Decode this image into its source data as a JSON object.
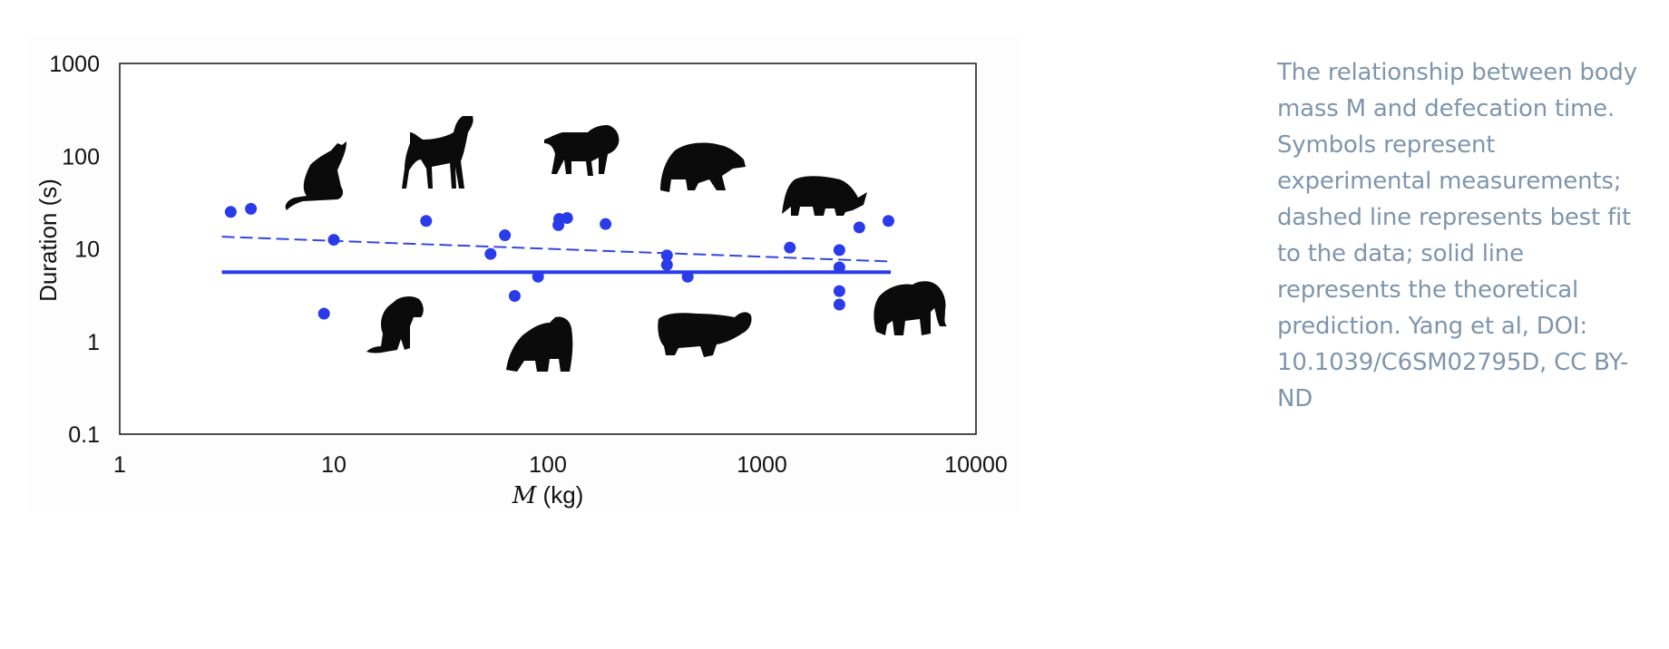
{
  "caption": "The relationship between body mass M and defecation time. Symbols represent experimental measurements; dashed line represents best fit to the data; solid line represents the theoretical prediction. Yang et al, DOI: 10.1039/C6SM02795D, CC BY-ND",
  "colors": {
    "points": "#2a3bea",
    "fit_line": "#3346e0",
    "theory_line": "#2a3bea",
    "silhouette": "#0b0b0b",
    "caption": "#7e95ac"
  },
  "icons": [
    "cat-silhouette-icon",
    "greyhound-silhouette-icon",
    "lion-silhouette-icon",
    "bear-silhouette-icon",
    "rhino-silhouette-icon",
    "dog-silhouette-icon",
    "gorilla-silhouette-icon",
    "hippo-silhouette-icon",
    "elephant-silhouette-icon"
  ],
  "chart_data": {
    "type": "scatter",
    "xlabel_italic": "M",
    "xlabel_unit": " (kg)",
    "ylabel": "Duration (s)",
    "xscale": "log",
    "yscale": "log",
    "xlim": [
      1,
      10000
    ],
    "ylim": [
      0.1,
      1000
    ],
    "x_ticks": [
      "1",
      "10",
      "100",
      "1000",
      "10000"
    ],
    "y_ticks": [
      "1000",
      "100",
      "10",
      "1",
      "0.1"
    ],
    "x_tick_values": [
      1,
      10,
      100,
      1000,
      10000
    ],
    "y_tick_values": [
      1000,
      100,
      10,
      1,
      0.1
    ],
    "points": [
      {
        "x": 3.3,
        "y": 25
      },
      {
        "x": 4.1,
        "y": 27
      },
      {
        "x": 9,
        "y": 2
      },
      {
        "x": 10,
        "y": 12.5
      },
      {
        "x": 27,
        "y": 20
      },
      {
        "x": 54,
        "y": 8.8
      },
      {
        "x": 63,
        "y": 14
      },
      {
        "x": 70,
        "y": 3.1
      },
      {
        "x": 90,
        "y": 5
      },
      {
        "x": 112,
        "y": 18
      },
      {
        "x": 113,
        "y": 21
      },
      {
        "x": 123,
        "y": 21.5
      },
      {
        "x": 186,
        "y": 18.5
      },
      {
        "x": 360,
        "y": 8.5
      },
      {
        "x": 360,
        "y": 6.7
      },
      {
        "x": 450,
        "y": 5
      },
      {
        "x": 1350,
        "y": 10.3
      },
      {
        "x": 2300,
        "y": 9.7
      },
      {
        "x": 2300,
        "y": 6.3
      },
      {
        "x": 2300,
        "y": 3.5
      },
      {
        "x": 2300,
        "y": 2.5
      },
      {
        "x": 2850,
        "y": 17
      },
      {
        "x": 3900,
        "y": 20
      }
    ],
    "best_fit_line": {
      "style": "dashed",
      "x": [
        3,
        4000
      ],
      "y": [
        13.5,
        7.3
      ]
    },
    "theory_line": {
      "style": "solid",
      "x": [
        3,
        4000
      ],
      "y": [
        5.6,
        5.6
      ]
    },
    "grid": false,
    "legend": "none"
  }
}
